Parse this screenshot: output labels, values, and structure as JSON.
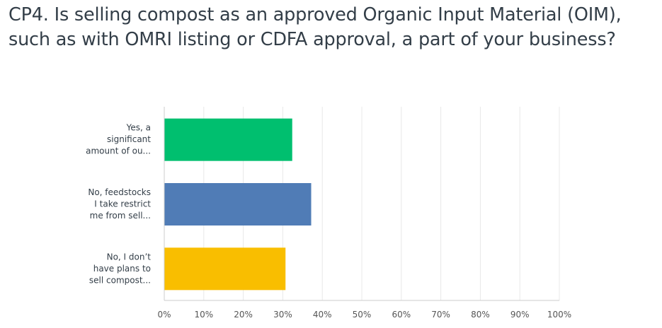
{
  "title": "CP4. Is selling compost as an approved Organic Input Material (OIM), such as with OMRI listing or CDFA approval, a part of your business?",
  "chart_data": {
    "type": "bar",
    "orientation": "horizontal",
    "categories": [
      [
        "Yes, a",
        "significant",
        "amount of ou..."
      ],
      [
        "No, feedstocks",
        "I take restrict",
        "me from sell..."
      ],
      [
        "No, I don’t",
        "have plans to",
        "sell compost..."
      ]
    ],
    "values": [
      32.3,
      37.1,
      30.6
    ],
    "colors": [
      "#00bf6f",
      "#507cb6",
      "#f9be00"
    ],
    "xlim": [
      0,
      100
    ],
    "x_ticks": [
      "0%",
      "10%",
      "20%",
      "30%",
      "40%",
      "50%",
      "60%",
      "70%",
      "80%",
      "90%",
      "100%"
    ],
    "grid": true,
    "unit": "%"
  }
}
